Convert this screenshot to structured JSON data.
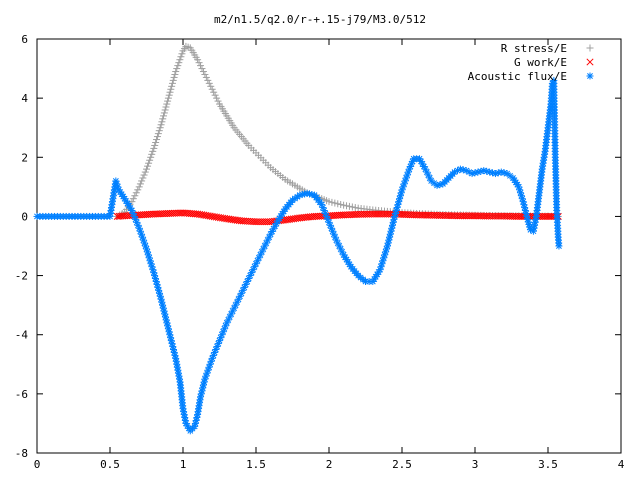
{
  "chart_data": {
    "type": "scatter",
    "title": "m2/n1.5/q2.0/r-+.15-j79/M3.0/512",
    "xlim": [
      0,
      4
    ],
    "ylim": [
      -8,
      6
    ],
    "xticks": [
      0,
      0.5,
      1,
      1.5,
      2,
      2.5,
      3,
      3.5,
      4
    ],
    "yticks": [
      -8,
      -6,
      -4,
      -2,
      0,
      2,
      4,
      6
    ],
    "xtick_labels": [
      "0",
      "0.5",
      "1",
      "1.5",
      "2",
      "2.5",
      "3",
      "3.5",
      "4"
    ],
    "ytick_labels": [
      "-8",
      "-6",
      "-4",
      "-2",
      "0",
      "2",
      "4",
      "6"
    ],
    "grid": false,
    "legend_position": "top-right",
    "series": [
      {
        "name": "R stress/E",
        "marker": "plus",
        "color": "#a0a0a0",
        "points": [
          [
            0.55,
            0.0
          ],
          [
            0.6,
            0.15
          ],
          [
            0.65,
            0.5
          ],
          [
            0.7,
            1.0
          ],
          [
            0.75,
            1.6
          ],
          [
            0.8,
            2.3
          ],
          [
            0.85,
            3.1
          ],
          [
            0.9,
            4.0
          ],
          [
            0.95,
            4.9
          ],
          [
            1.0,
            5.6
          ],
          [
            1.02,
            5.75
          ],
          [
            1.05,
            5.7
          ],
          [
            1.1,
            5.3
          ],
          [
            1.15,
            4.8
          ],
          [
            1.2,
            4.3
          ],
          [
            1.25,
            3.8
          ],
          [
            1.3,
            3.4
          ],
          [
            1.35,
            3.0
          ],
          [
            1.4,
            2.7
          ],
          [
            1.45,
            2.4
          ],
          [
            1.5,
            2.15
          ],
          [
            1.55,
            1.9
          ],
          [
            1.6,
            1.65
          ],
          [
            1.65,
            1.45
          ],
          [
            1.7,
            1.25
          ],
          [
            1.75,
            1.1
          ],
          [
            1.8,
            0.95
          ],
          [
            1.85,
            0.8
          ],
          [
            1.9,
            0.7
          ],
          [
            1.95,
            0.6
          ],
          [
            2.0,
            0.5
          ],
          [
            2.1,
            0.38
          ],
          [
            2.2,
            0.28
          ],
          [
            2.3,
            0.22
          ],
          [
            2.4,
            0.17
          ],
          [
            2.5,
            0.13
          ],
          [
            2.6,
            0.1
          ],
          [
            2.7,
            0.08
          ],
          [
            2.8,
            0.06
          ],
          [
            2.9,
            0.05
          ],
          [
            3.0,
            0.04
          ],
          [
            3.1,
            0.03
          ],
          [
            3.2,
            0.02
          ],
          [
            3.3,
            0.02
          ],
          [
            3.4,
            0.01
          ],
          [
            3.5,
            0.01
          ],
          [
            3.57,
            0.0
          ]
        ]
      },
      {
        "name": "G work/E",
        "marker": "cross",
        "color": "#ff0000",
        "points": [
          [
            0.55,
            0.0
          ],
          [
            0.6,
            0.02
          ],
          [
            0.7,
            0.05
          ],
          [
            0.8,
            0.08
          ],
          [
            0.9,
            0.1
          ],
          [
            1.0,
            0.12
          ],
          [
            1.1,
            0.08
          ],
          [
            1.2,
            0.0
          ],
          [
            1.3,
            -0.08
          ],
          [
            1.4,
            -0.15
          ],
          [
            1.5,
            -0.18
          ],
          [
            1.6,
            -0.18
          ],
          [
            1.7,
            -0.12
          ],
          [
            1.8,
            -0.05
          ],
          [
            1.9,
            0.0
          ],
          [
            2.0,
            0.02
          ],
          [
            2.1,
            0.05
          ],
          [
            2.2,
            0.07
          ],
          [
            2.3,
            0.08
          ],
          [
            2.4,
            0.08
          ],
          [
            2.5,
            0.07
          ],
          [
            2.6,
            0.05
          ],
          [
            2.7,
            0.04
          ],
          [
            2.8,
            0.03
          ],
          [
            2.9,
            0.02
          ],
          [
            3.0,
            0.02
          ],
          [
            3.1,
            0.01
          ],
          [
            3.2,
            0.01
          ],
          [
            3.3,
            0.0
          ],
          [
            3.4,
            0.0
          ],
          [
            3.5,
            0.0
          ],
          [
            3.57,
            0.0
          ]
        ]
      },
      {
        "name": "Acoustic flux/E",
        "marker": "star",
        "color": "#0080ff",
        "points": [
          [
            0.0,
            0.0
          ],
          [
            0.1,
            0.0
          ],
          [
            0.2,
            0.0
          ],
          [
            0.3,
            0.0
          ],
          [
            0.4,
            0.0
          ],
          [
            0.5,
            0.0
          ],
          [
            0.54,
            1.2
          ],
          [
            0.56,
            0.9
          ],
          [
            0.6,
            0.6
          ],
          [
            0.65,
            0.2
          ],
          [
            0.7,
            -0.4
          ],
          [
            0.75,
            -1.1
          ],
          [
            0.8,
            -1.9
          ],
          [
            0.85,
            -2.8
          ],
          [
            0.9,
            -3.8
          ],
          [
            0.95,
            -4.8
          ],
          [
            0.98,
            -5.6
          ],
          [
            1.0,
            -6.5
          ],
          [
            1.02,
            -7.0
          ],
          [
            1.05,
            -7.25
          ],
          [
            1.08,
            -7.1
          ],
          [
            1.1,
            -6.7
          ],
          [
            1.12,
            -6.1
          ],
          [
            1.15,
            -5.5
          ],
          [
            1.2,
            -4.8
          ],
          [
            1.25,
            -4.2
          ],
          [
            1.3,
            -3.6
          ],
          [
            1.35,
            -3.1
          ],
          [
            1.4,
            -2.6
          ],
          [
            1.45,
            -2.1
          ],
          [
            1.5,
            -1.6
          ],
          [
            1.55,
            -1.1
          ],
          [
            1.6,
            -0.6
          ],
          [
            1.65,
            -0.15
          ],
          [
            1.7,
            0.25
          ],
          [
            1.75,
            0.55
          ],
          [
            1.8,
            0.72
          ],
          [
            1.85,
            0.78
          ],
          [
            1.9,
            0.72
          ],
          [
            1.95,
            0.4
          ],
          [
            2.0,
            -0.2
          ],
          [
            2.05,
            -0.8
          ],
          [
            2.1,
            -1.3
          ],
          [
            2.15,
            -1.7
          ],
          [
            2.2,
            -2.0
          ],
          [
            2.25,
            -2.2
          ],
          [
            2.3,
            -2.2
          ],
          [
            2.35,
            -1.8
          ],
          [
            2.4,
            -1.0
          ],
          [
            2.45,
            0.0
          ],
          [
            2.5,
            0.9
          ],
          [
            2.55,
            1.6
          ],
          [
            2.58,
            1.95
          ],
          [
            2.62,
            1.95
          ],
          [
            2.66,
            1.6
          ],
          [
            2.7,
            1.2
          ],
          [
            2.74,
            1.05
          ],
          [
            2.78,
            1.1
          ],
          [
            2.82,
            1.3
          ],
          [
            2.86,
            1.5
          ],
          [
            2.9,
            1.6
          ],
          [
            2.94,
            1.55
          ],
          [
            2.98,
            1.45
          ],
          [
            3.02,
            1.5
          ],
          [
            3.06,
            1.55
          ],
          [
            3.1,
            1.5
          ],
          [
            3.14,
            1.45
          ],
          [
            3.18,
            1.5
          ],
          [
            3.22,
            1.45
          ],
          [
            3.26,
            1.3
          ],
          [
            3.3,
            1.0
          ],
          [
            3.33,
            0.5
          ],
          [
            3.36,
            -0.1
          ],
          [
            3.38,
            -0.45
          ],
          [
            3.4,
            -0.5
          ],
          [
            3.42,
            0.0
          ],
          [
            3.44,
            0.8
          ],
          [
            3.46,
            1.6
          ],
          [
            3.48,
            2.2
          ],
          [
            3.5,
            3.0
          ],
          [
            3.52,
            3.8
          ],
          [
            3.53,
            4.5
          ],
          [
            3.54,
            4.6
          ],
          [
            3.55,
            2.0
          ],
          [
            3.56,
            0.2
          ],
          [
            3.57,
            -0.7
          ],
          [
            3.575,
            -1.0
          ]
        ]
      }
    ]
  },
  "colors": {
    "background": "#ffffff",
    "axis": "#000000",
    "r_stress": "#a0a0a0",
    "g_work": "#ff0000",
    "acoustic_flux": "#0080ff"
  }
}
